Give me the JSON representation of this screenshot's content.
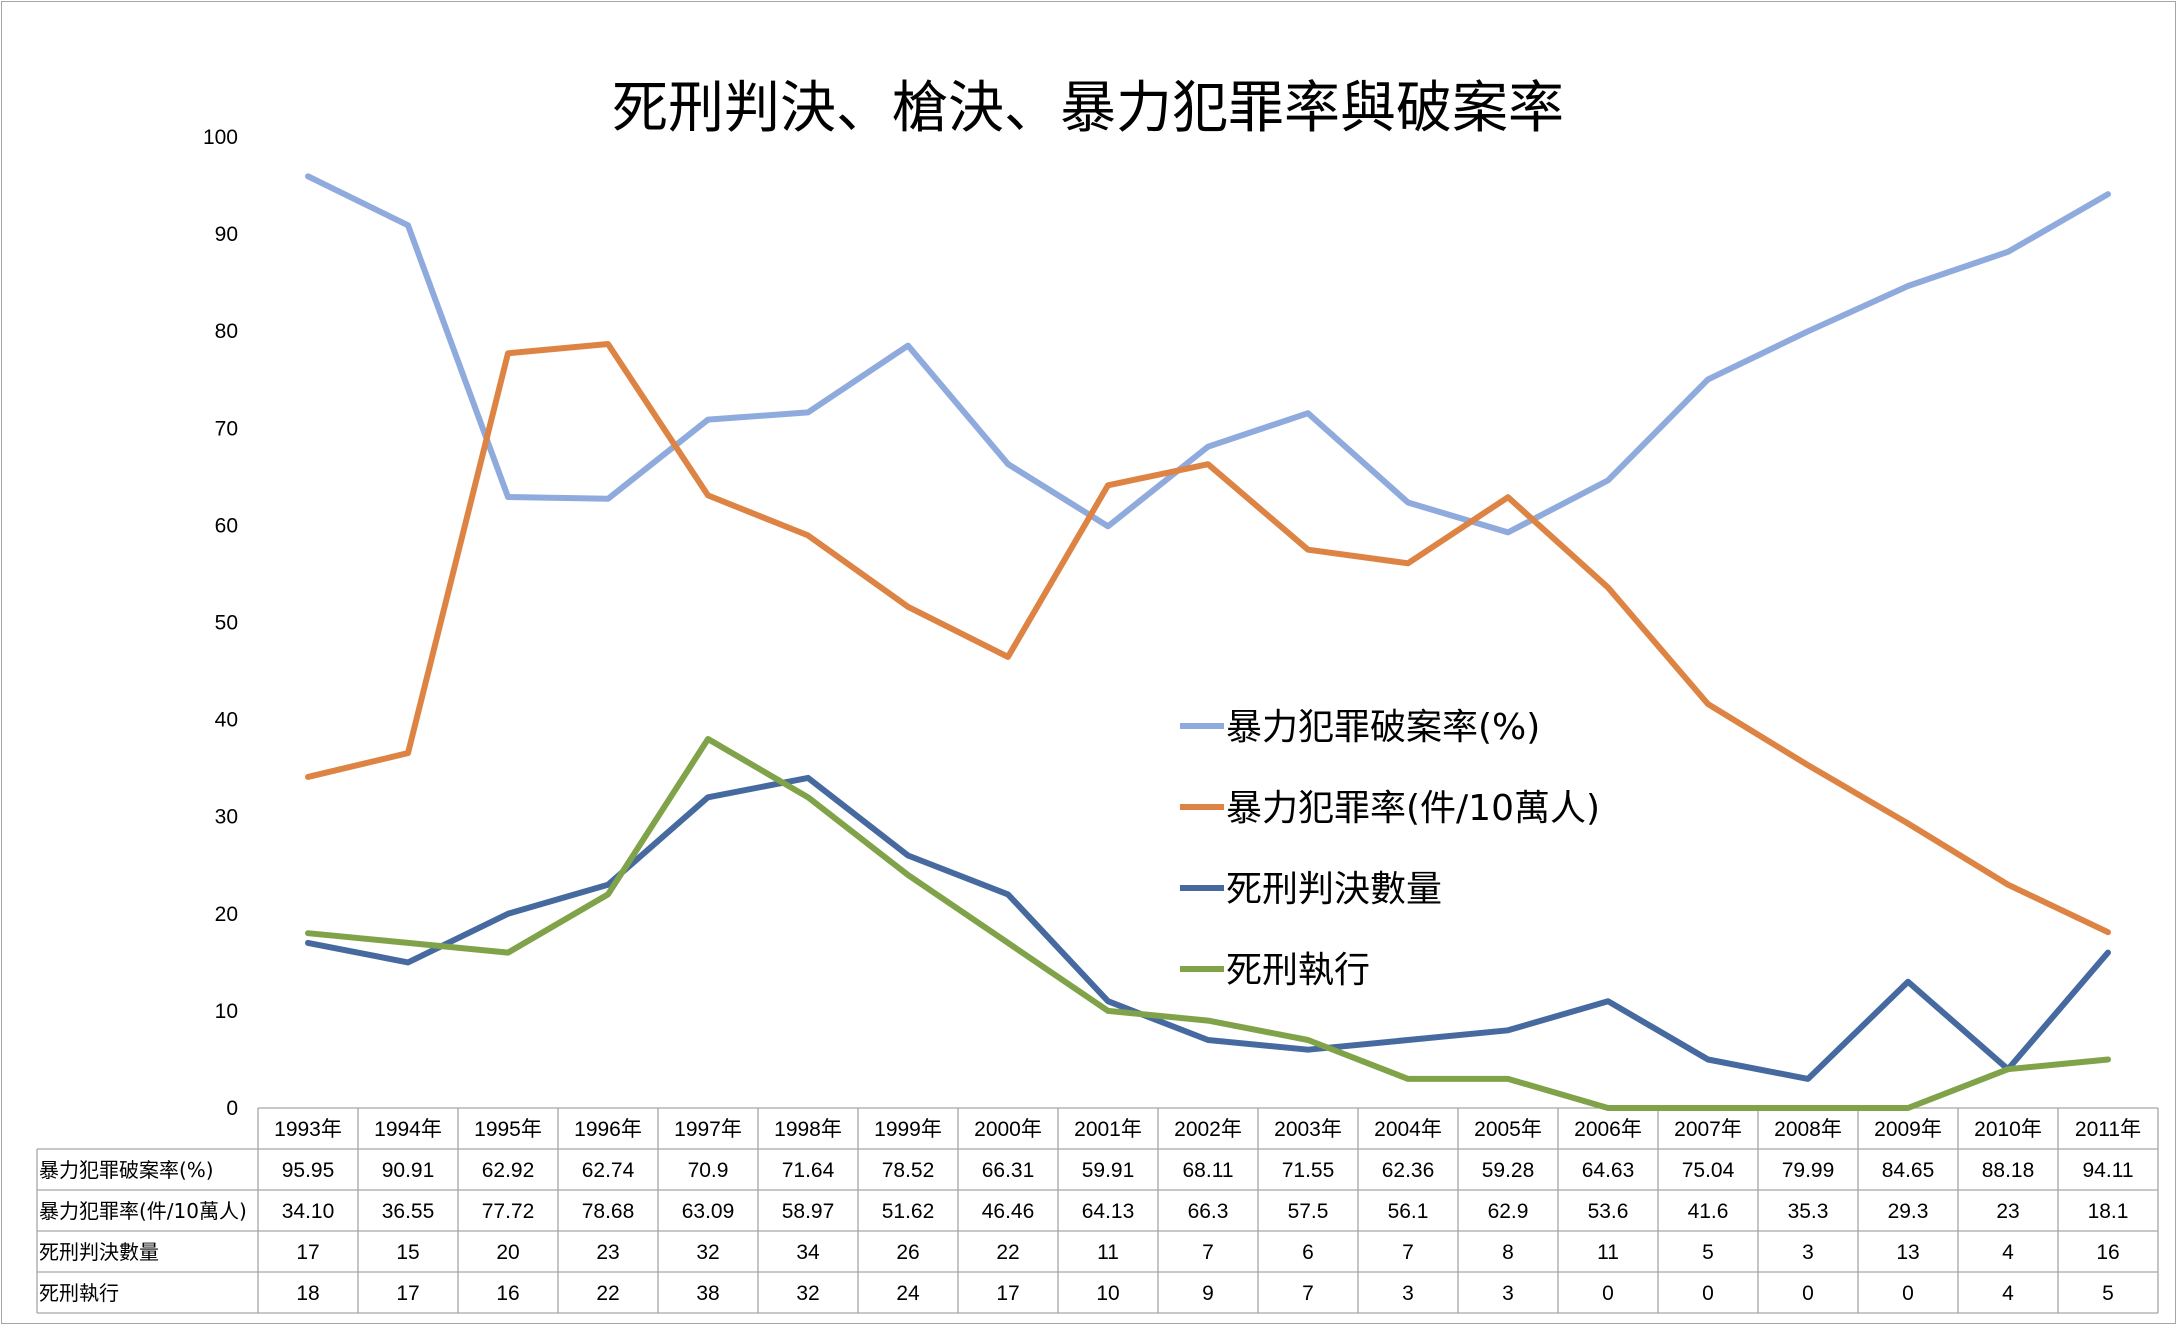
{
  "chart_data": {
    "type": "line",
    "title": "死刑判決、槍決、暴力犯罪率與破案率",
    "categories": [
      "1993年",
      "1994年",
      "1995年",
      "1996年",
      "1997年",
      "1998年",
      "1999年",
      "2000年",
      "2001年",
      "2002年",
      "2003年",
      "2004年",
      "2005年",
      "2006年",
      "2007年",
      "2008年",
      "2009年",
      "2010年",
      "2011年"
    ],
    "ylim": [
      0,
      100
    ],
    "yticks": [
      "0",
      "10",
      "20",
      "30",
      "40",
      "50",
      "60",
      "70",
      "80",
      "90",
      "100"
    ],
    "legend_position": "right-center (inside plot)",
    "grid": false,
    "data_table": true,
    "series": [
      {
        "name": "暴力犯罪破案率(%)",
        "color": "#8faadc",
        "values": [
          95.95,
          90.91,
          62.92,
          62.74,
          70.9,
          71.64,
          78.52,
          66.31,
          59.91,
          68.11,
          71.55,
          62.36,
          59.28,
          64.63,
          75.04,
          79.99,
          84.65,
          88.18,
          94.11
        ],
        "labels": [
          "95.95",
          "90.91",
          "62.92",
          "62.74",
          "70.9",
          "71.64",
          "78.52",
          "66.31",
          "59.91",
          "68.11",
          "71.55",
          "62.36",
          "59.28",
          "64.63",
          "75.04",
          "79.99",
          "84.65",
          "88.18",
          "94.11"
        ]
      },
      {
        "name": "暴力犯罪率(件/10萬人)",
        "table_name": "暴力犯罪率(件/10萬人)",
        "color": "#dd8444",
        "values": [
          34.1,
          36.55,
          77.72,
          78.68,
          63.09,
          58.97,
          51.62,
          46.46,
          64.13,
          66.3,
          57.5,
          56.1,
          62.9,
          53.6,
          41.6,
          35.3,
          29.3,
          23,
          18.1
        ],
        "labels": [
          "34.10",
          "36.55",
          "77.72",
          "78.68",
          "63.09",
          "58.97",
          "51.62",
          "46.46",
          "64.13",
          "66.3",
          "57.5",
          "56.1",
          "62.9",
          "53.6",
          "41.6",
          "35.3",
          "29.3",
          "23",
          "18.1"
        ]
      },
      {
        "name": "死刑判決數量",
        "color": "#466aa0",
        "values": [
          17,
          15,
          20,
          23,
          32,
          34,
          26,
          22,
          11,
          7,
          6,
          7,
          8,
          11,
          5,
          3,
          13,
          4,
          16
        ],
        "labels": [
          "17",
          "15",
          "20",
          "23",
          "32",
          "34",
          "26",
          "22",
          "11",
          "7",
          "6",
          "7",
          "8",
          "11",
          "5",
          "3",
          "13",
          "4",
          "16"
        ]
      },
      {
        "name": "死刑執行",
        "color": "#80a34a",
        "values": [
          18,
          17,
          16,
          22,
          38,
          32,
          24,
          17,
          10,
          9,
          7,
          3,
          3,
          0,
          0,
          0,
          0,
          4,
          5
        ],
        "labels": [
          "18",
          "17",
          "16",
          "22",
          "38",
          "32",
          "24",
          "17",
          "10",
          "9",
          "7",
          "3",
          "3",
          "0",
          "0",
          "0",
          "0",
          "4",
          "5"
        ]
      }
    ]
  }
}
